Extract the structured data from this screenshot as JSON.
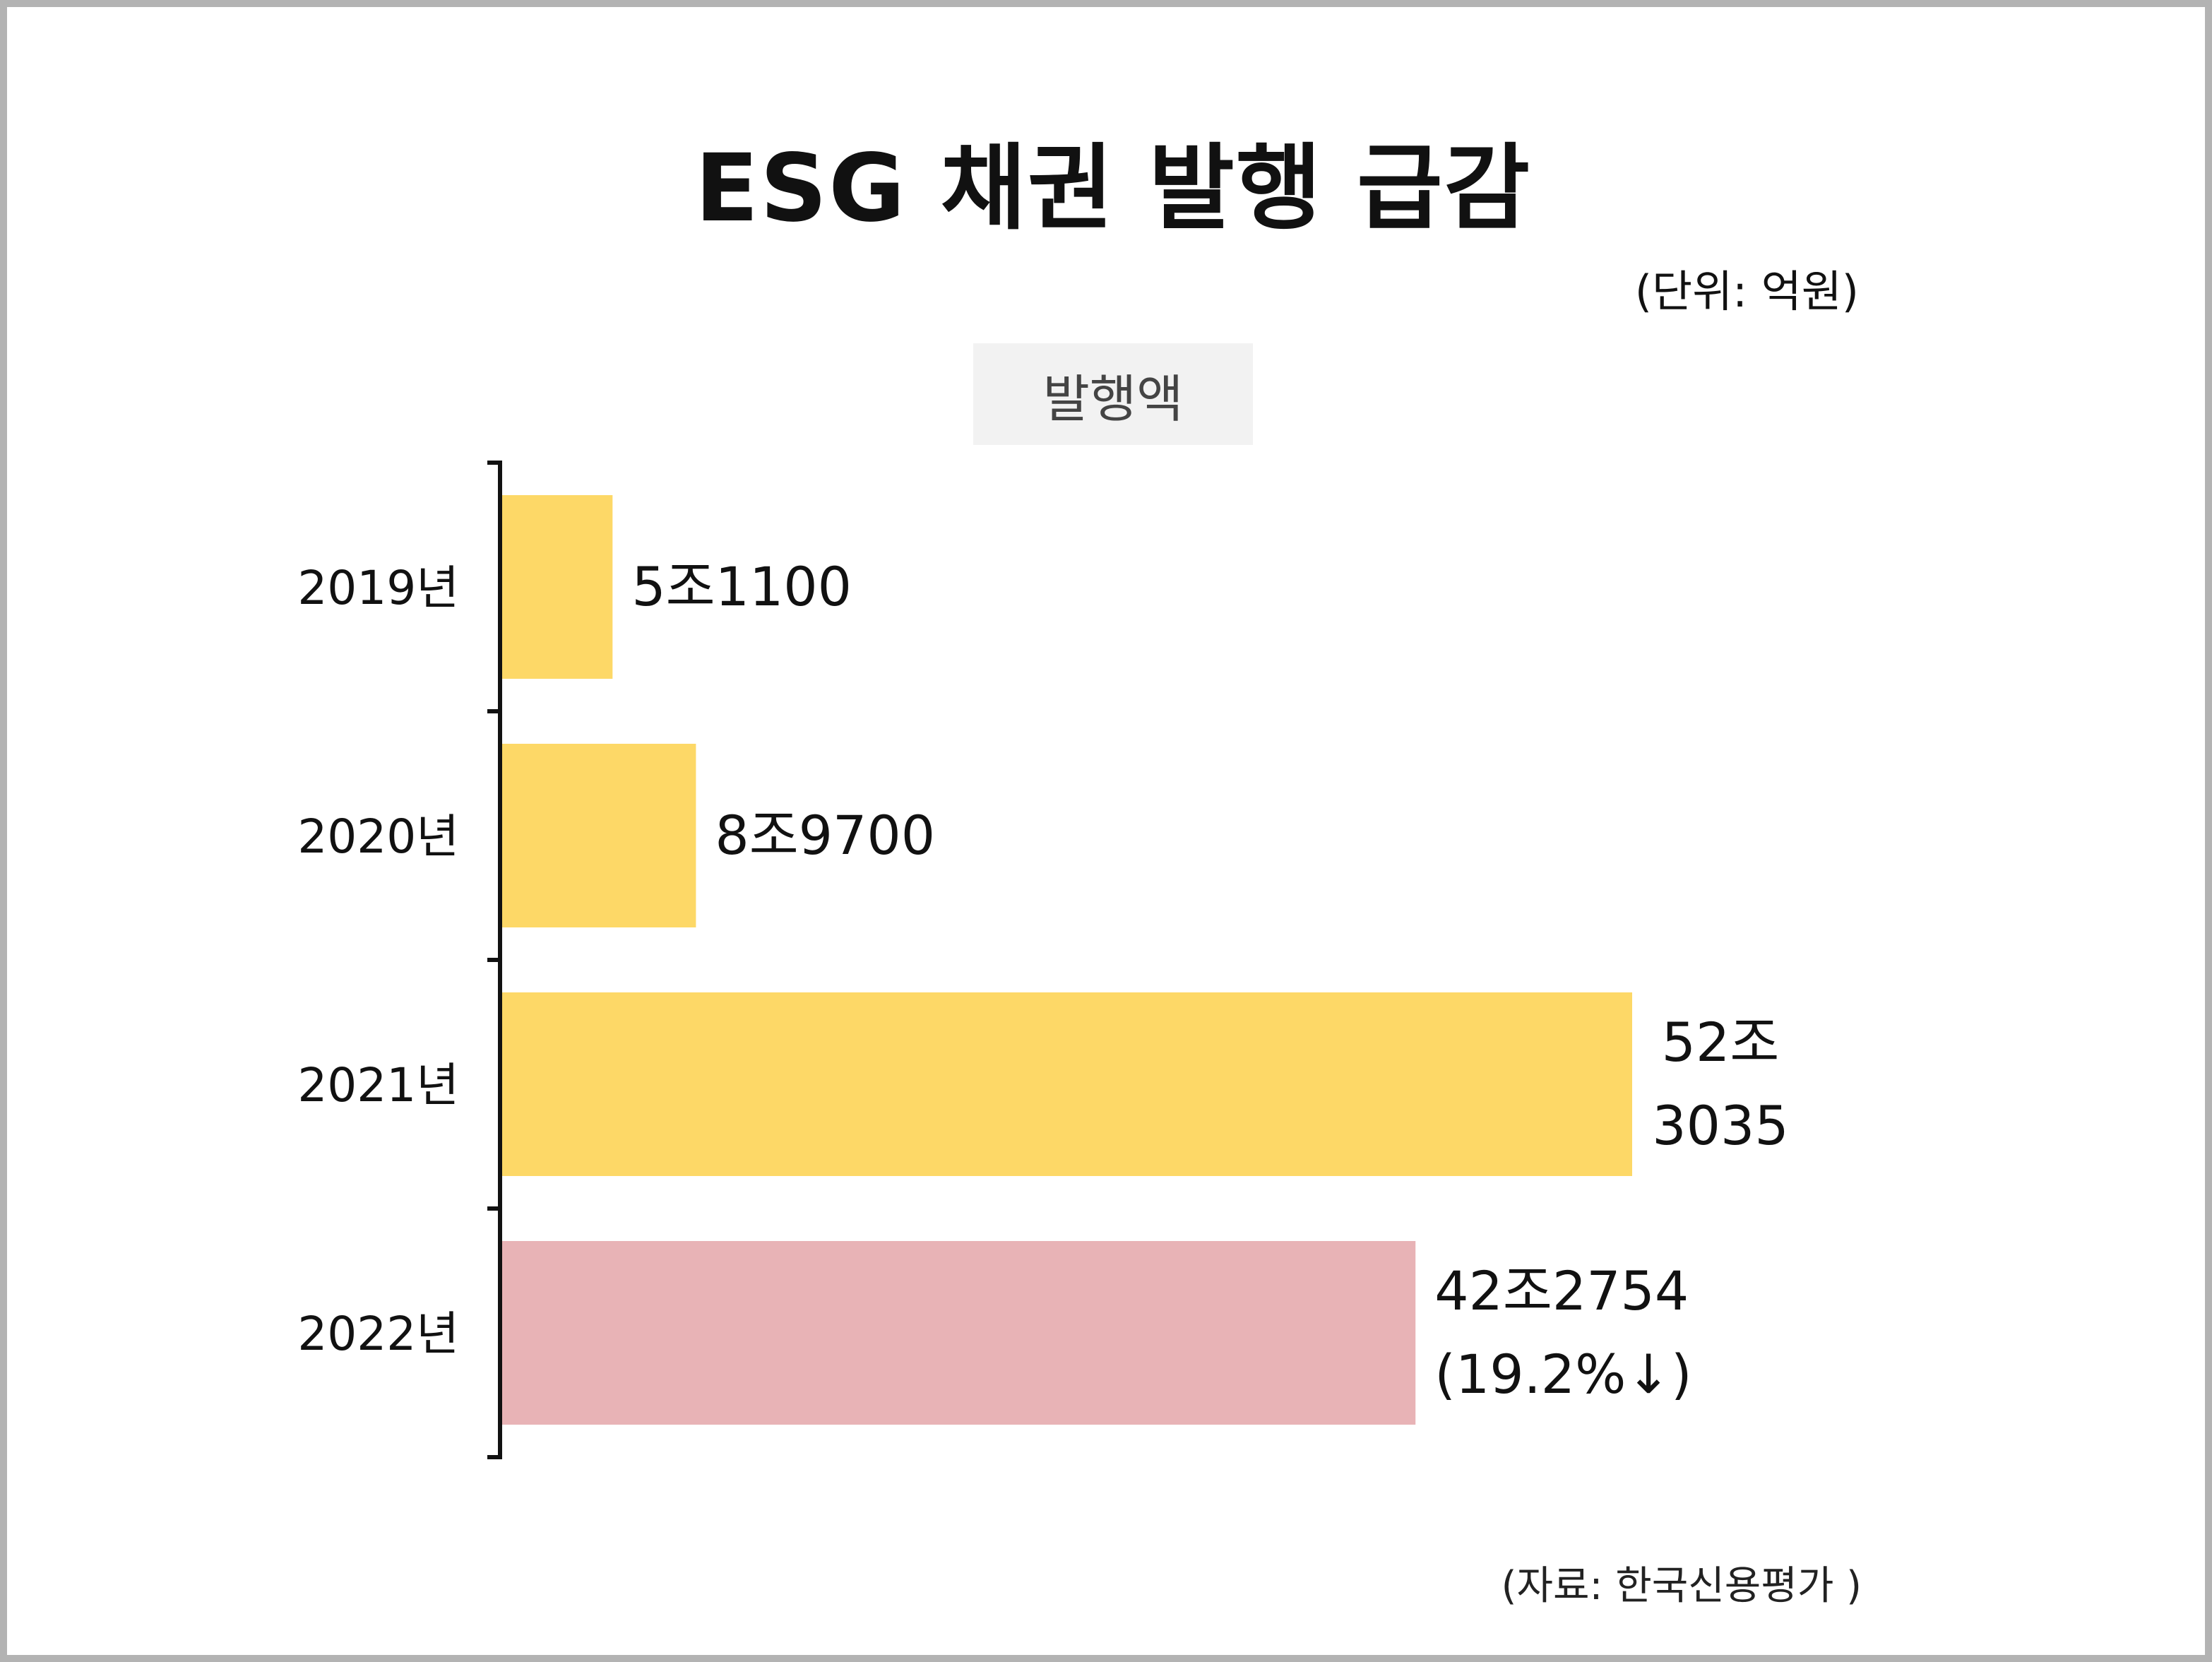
{
  "title": "ESG 채권 발행 급감",
  "unit_label": "(단위: 억원)",
  "legend_label": "발행액",
  "source": "(자료: 한국신용평가 )",
  "colors": {
    "bar_default": "#fdd867",
    "bar_highlight": "#e8b3b6",
    "axis": "#111111",
    "frame": "#b3b3b3",
    "legend_bg": "#f2f2f2"
  },
  "chart_data": {
    "type": "bar",
    "orientation": "horizontal",
    "categories": [
      "2019년",
      "2020년",
      "2021년",
      "2022년"
    ],
    "values": [
      51100,
      89700,
      523035,
      422754
    ],
    "value_labels": [
      [
        "5조1100"
      ],
      [
        "8조9700"
      ],
      [
        "52조",
        "3035"
      ],
      [
        "42조2754",
        "(19.2%↓)"
      ]
    ],
    "highlight_index": 3,
    "unit": "억원",
    "grid": false,
    "legend_placement": "top-center"
  }
}
